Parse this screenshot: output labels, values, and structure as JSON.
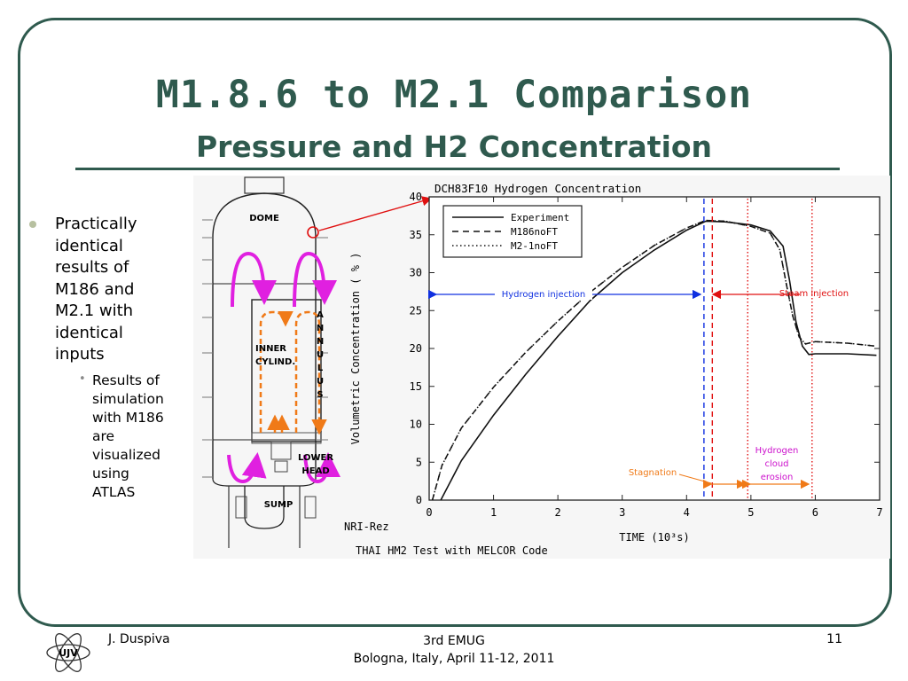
{
  "slide": {
    "title": "M1.8.6 to M2.1 Comparison",
    "subtitle": "Pressure and H2 Concentration",
    "theme_color": "#2f5a4e",
    "bullets": [
      {
        "text": "Practically identical results of M186 and M2.1 with identical inputs",
        "lines": [
          "Practically",
          "identical",
          "results of",
          "M186 and",
          "M2.1 with",
          "identical",
          "inputs"
        ]
      },
      {
        "text": "Results of simulation with M186 are visualized using ATLAS",
        "lines": [
          "Results of",
          "simulation",
          "with M186",
          "are",
          "visualized",
          "using",
          "ATLAS"
        ]
      }
    ]
  },
  "footer": {
    "author": "J. Duspiva",
    "event": "3rd EMUG",
    "location_date": "Bologna, Italy, April 11-12, 2011",
    "page": "11",
    "logo_text": "UJV"
  },
  "vessel": {
    "labels": {
      "dome": "DOME",
      "inner1": "INNER",
      "inner2": "CYLIND.",
      "annulus": [
        "A",
        "N",
        "N",
        "U",
        "L",
        "U",
        "S"
      ],
      "lower1": "LOWER",
      "lower2": "HEAD",
      "sump": "SUMP"
    },
    "arrow_colors": {
      "magenta": "#e020e0",
      "orange": "#f07a18"
    }
  },
  "chart_data": {
    "type": "line",
    "title": "DCH83F10 Hydrogen Concentration",
    "xlabel": "TIME (10³s)",
    "ylabel": "Volumetric Concentration ( % )",
    "xlim": [
      0,
      7
    ],
    "ylim": [
      0,
      40
    ],
    "xticks": [
      "0",
      "1",
      "2",
      "3",
      "4",
      "5",
      "6",
      "7"
    ],
    "yticks": [
      "0",
      "5",
      "10",
      "15",
      "20",
      "25",
      "30",
      "35",
      "40"
    ],
    "series": [
      {
        "name": "Experiment",
        "style": "solid",
        "x": [
          0.18,
          0.5,
          1.0,
          1.5,
          2.0,
          2.5,
          3.0,
          3.5,
          4.0,
          4.3,
          4.6,
          5.0,
          5.3,
          5.5,
          5.6,
          5.7,
          5.8,
          5.9,
          6.0,
          6.5,
          6.95
        ],
        "y": [
          0.0,
          5.2,
          11.2,
          16.6,
          21.6,
          26.3,
          30.0,
          33.0,
          35.6,
          36.8,
          36.7,
          36.3,
          35.5,
          33.5,
          29.0,
          23.5,
          20.3,
          19.2,
          19.3,
          19.3,
          19.1
        ]
      },
      {
        "name": "M186noFT",
        "style": "dashed",
        "x": [
          0.05,
          0.2,
          0.5,
          1.0,
          1.5,
          2.0,
          2.5,
          3.0,
          3.5,
          4.0,
          4.3,
          4.6,
          5.0,
          5.3,
          5.45,
          5.55,
          5.65,
          5.75,
          5.85,
          6.0,
          6.5,
          6.95
        ],
        "y": [
          0.0,
          4.6,
          9.5,
          14.9,
          19.5,
          23.6,
          27.4,
          30.7,
          33.6,
          35.9,
          36.9,
          36.8,
          36.1,
          35.2,
          33.0,
          28.5,
          24.3,
          21.5,
          20.6,
          20.9,
          20.7,
          20.3
        ]
      },
      {
        "name": "M2-1noFT",
        "style": "dotted",
        "x": [
          0.05,
          0.2,
          0.5,
          1.0,
          1.5,
          2.0,
          2.5,
          3.0,
          3.5,
          4.0,
          4.3,
          4.6,
          5.0,
          5.3,
          5.45,
          5.55,
          5.65,
          5.75,
          5.85,
          6.0,
          6.5,
          6.95
        ],
        "y": [
          0.0,
          4.6,
          9.5,
          14.9,
          19.5,
          23.6,
          27.4,
          30.7,
          33.6,
          35.9,
          36.9,
          36.8,
          36.1,
          35.2,
          33.0,
          28.5,
          24.3,
          21.5,
          20.6,
          20.9,
          20.7,
          20.3
        ]
      }
    ],
    "legend_placement": "top-left",
    "vlines": [
      {
        "x": 4.27,
        "color": "#1030e0",
        "style": "dashed"
      },
      {
        "x": 4.4,
        "color": "#e01010",
        "style": "dashed"
      },
      {
        "x": 4.95,
        "color": "#e01010",
        "style": "dotted"
      },
      {
        "x": 5.95,
        "color": "#e01010",
        "style": "dotted"
      }
    ],
    "annotations": {
      "hydrogen_injection": "Hydrogen injection",
      "steam_injection": "Steam injection",
      "stagnation": "Stagnation",
      "cloud_erosion": [
        "Hydrogen",
        "cloud",
        "erosion"
      ],
      "footer_code": "NRI-Rez",
      "caption": "THAI HM2 Test with MELCOR Code"
    },
    "colors": {
      "blue": "#1030e0",
      "red": "#e01010",
      "orange": "#f07a18",
      "magenta": "#cc10cc"
    }
  }
}
